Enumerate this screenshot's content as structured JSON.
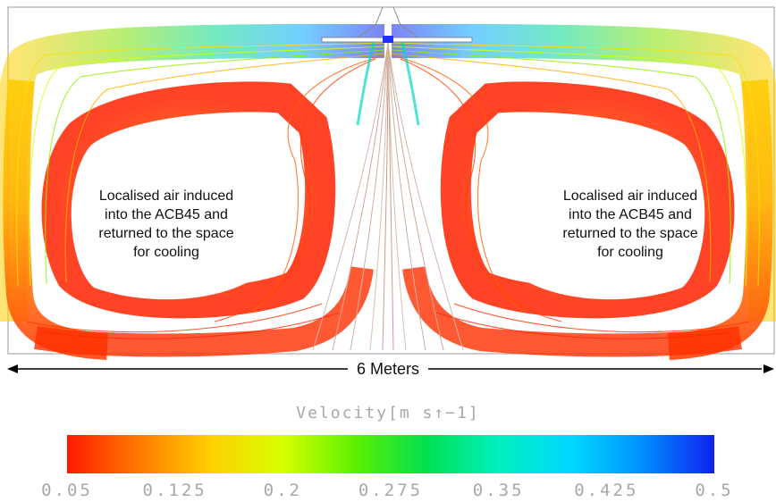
{
  "annotations": {
    "left": [
      "Localised air induced",
      "into the ACB45 and",
      "returned to the space",
      "for cooling"
    ],
    "right": [
      "Localised air induced",
      "into the ACB45 and",
      "returned to the space",
      "for cooling"
    ]
  },
  "scale_label": "6 Meters",
  "legend": {
    "title": "Velocity[m s↑−1]",
    "min": 0.05,
    "max": 0.5,
    "ticks": [
      "0.05",
      "0.125",
      "0.2",
      "0.275",
      "0.35",
      "0.425",
      "0.5"
    ],
    "colors": [
      "#ff1a00",
      "#ff7a00",
      "#ffd000",
      "#d8ff00",
      "#5ef000",
      "#00e050",
      "#00f0c0",
      "#00d8ff",
      "#0090ff",
      "#1020f0"
    ]
  }
}
